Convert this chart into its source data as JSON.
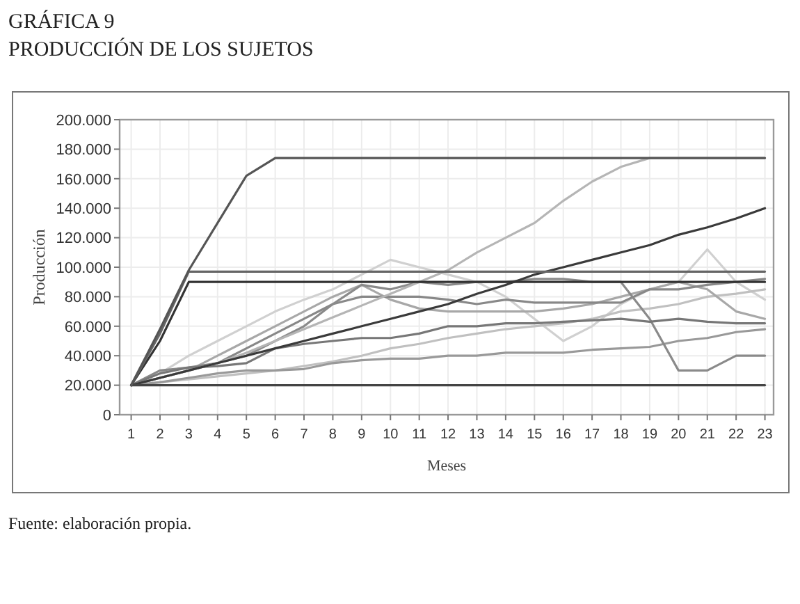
{
  "chart_data": {
    "type": "line",
    "title": "GRÁFICA 9",
    "subtitle": "PRODUCCIÓN DE LOS SUJETOS",
    "xlabel": "Meses",
    "ylabel": "Producción",
    "annotations": [
      "Fuente: elaboración propia."
    ],
    "x": [
      1,
      2,
      3,
      4,
      5,
      6,
      7,
      8,
      9,
      10,
      11,
      12,
      13,
      14,
      15,
      16,
      17,
      18,
      19,
      20,
      21,
      22,
      23
    ],
    "xlim": [
      0.6,
      23.3
    ],
    "xticks": [
      1,
      2,
      3,
      4,
      5,
      6,
      7,
      8,
      9,
      10,
      11,
      12,
      13,
      14,
      15,
      16,
      17,
      18,
      19,
      20,
      21,
      22,
      23
    ],
    "ylim": [
      0,
      200000
    ],
    "yticks": [
      {
        "value": 0,
        "label": "0"
      },
      {
        "value": 20000,
        "label": "20.000"
      },
      {
        "value": 40000,
        "label": "40.000"
      },
      {
        "value": 60000,
        "label": "60.000"
      },
      {
        "value": 80000,
        "label": "80.000"
      },
      {
        "value": 100000,
        "label": "100.000"
      },
      {
        "value": 120000,
        "label": "120.000"
      },
      {
        "value": 140000,
        "label": "140.000"
      },
      {
        "value": 160000,
        "label": "160.000"
      },
      {
        "value": 180000,
        "label": "180.000"
      },
      {
        "value": 200000,
        "label": "200.000"
      }
    ],
    "grid": true,
    "marker": "none",
    "line_style": "solid",
    "series": [
      {
        "color": "#d0d0d0",
        "values": [
          20000,
          28000,
          40000,
          50000,
          60000,
          70000,
          78000,
          85000,
          95000,
          105000,
          100000,
          95000,
          90000,
          80000,
          65000,
          50000,
          60000,
          75000,
          85000,
          90000,
          112000,
          90000,
          78000
        ]
      },
      {
        "color": "#c0c0c0",
        "values": [
          20000,
          22000,
          24000,
          26000,
          28000,
          30000,
          33000,
          36000,
          40000,
          45000,
          48000,
          52000,
          55000,
          58000,
          60000,
          62000,
          65000,
          70000,
          72000,
          75000,
          80000,
          82000,
          85000
        ]
      },
      {
        "color": "#999999",
        "values": [
          20000,
          22000,
          25000,
          28000,
          30000,
          30000,
          31000,
          35000,
          37000,
          38000,
          38000,
          40000,
          40000,
          42000,
          42000,
          42000,
          44000,
          45000,
          46000,
          50000,
          52000,
          56000,
          58000
        ]
      },
      {
        "color": "#a8a8a8",
        "values": [
          20000,
          25000,
          30000,
          40000,
          50000,
          60000,
          70000,
          80000,
          88000,
          78000,
          72000,
          70000,
          70000,
          70000,
          70000,
          72000,
          75000,
          80000,
          85000,
          90000,
          85000,
          70000,
          65000
        ]
      },
      {
        "color": "#888888",
        "values": [
          20000,
          30000,
          32000,
          35000,
          45000,
          55000,
          65000,
          75000,
          80000,
          80000,
          80000,
          78000,
          75000,
          78000,
          76000,
          76000,
          76000,
          76000,
          85000,
          85000,
          88000,
          90000,
          92000
        ]
      },
      {
        "color": "#8a8a8a",
        "values": [
          20000,
          25000,
          30000,
          35000,
          40000,
          50000,
          60000,
          75000,
          88000,
          85000,
          90000,
          88000,
          90000,
          90000,
          92000,
          92000,
          90000,
          90000,
          65000,
          30000,
          30000,
          40000,
          40000
        ]
      },
      {
        "color": "#777777",
        "values": [
          20000,
          28000,
          32000,
          33000,
          35000,
          45000,
          48000,
          50000,
          52000,
          52000,
          55000,
          60000,
          60000,
          62000,
          62000,
          63000,
          64000,
          65000,
          63000,
          65000,
          63000,
          62000,
          62000
        ]
      },
      {
        "color": "#b5b5b5",
        "values": [
          20000,
          25000,
          30000,
          35000,
          42000,
          50000,
          58000,
          66000,
          74000,
          82000,
          90000,
          98000,
          110000,
          120000,
          130000,
          145000,
          158000,
          168000,
          174000,
          174000,
          174000,
          174000,
          174000
        ]
      },
      {
        "color": "#3a3a3a",
        "values": [
          20000,
          25000,
          30000,
          35000,
          40000,
          45000,
          50000,
          55000,
          60000,
          65000,
          70000,
          75000,
          82000,
          88000,
          95000,
          100000,
          105000,
          110000,
          115000,
          122000,
          127000,
          133000,
          140000
        ]
      },
      {
        "color": "#444444",
        "values": [
          20000,
          20000,
          20000,
          20000,
          20000,
          20000,
          20000,
          20000,
          20000,
          20000,
          20000,
          20000,
          20000,
          20000,
          20000,
          20000,
          20000,
          20000,
          20000,
          20000,
          20000,
          20000,
          20000
        ]
      },
      {
        "color": "#333333",
        "values": [
          20000,
          50000,
          90000,
          90000,
          90000,
          90000,
          90000,
          90000,
          90000,
          90000,
          90000,
          90000,
          90000,
          90000,
          90000,
          90000,
          90000,
          90000,
          90000,
          90000,
          90000,
          90000,
          90000
        ]
      },
      {
        "color": "#666666",
        "values": [
          20000,
          55000,
          97000,
          97000,
          97000,
          97000,
          97000,
          97000,
          97000,
          97000,
          97000,
          97000,
          97000,
          97000,
          97000,
          97000,
          97000,
          97000,
          97000,
          97000,
          97000,
          97000,
          97000
        ]
      },
      {
        "color": "#555555",
        "values": [
          20000,
          58000,
          98000,
          130000,
          162000,
          174000,
          174000,
          174000,
          174000,
          174000,
          174000,
          174000,
          174000,
          174000,
          174000,
          174000,
          174000,
          174000,
          174000,
          174000,
          174000,
          174000,
          174000
        ]
      }
    ]
  }
}
